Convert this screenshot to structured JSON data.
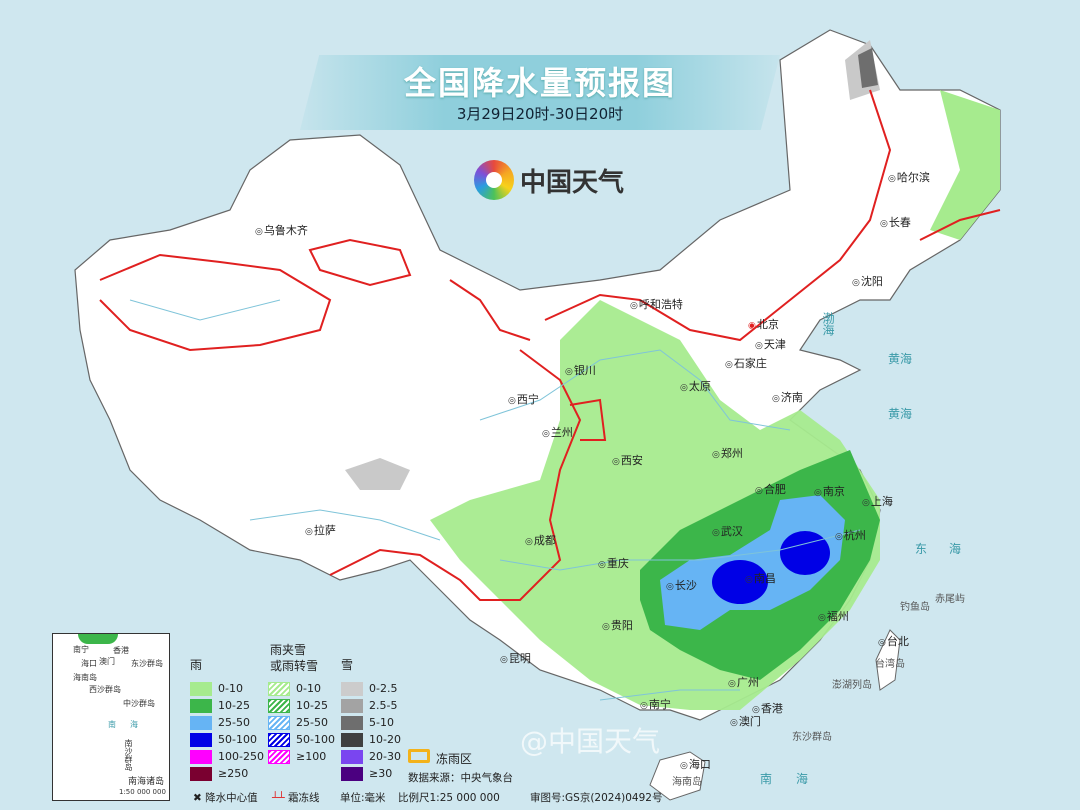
{
  "header": {
    "title": "全国降水量预报图",
    "subtitle": "3月29日20时-30日20时",
    "logo_text": "中国天气"
  },
  "colors": {
    "sea": "#cfe7ef",
    "land": "#ffffff",
    "rain_0_10": "#a6eb8e",
    "rain_10_25": "#3cb64a",
    "rain_25_50": "#66b4f4",
    "rain_50_100": "#0000e6",
    "rain_100_250": "#ff00ff",
    "rain_250": "#7a0030",
    "frost_line": "#e02020",
    "freezing_rain": "#f3b21a"
  },
  "cities": [
    "乌鲁木齐",
    "呼和浩特",
    "北京",
    "天津",
    "石家庄",
    "太原",
    "济南",
    "银川",
    "西宁",
    "兰州",
    "西安",
    "郑州",
    "合肥",
    "南京",
    "上海",
    "武汉",
    "杭州",
    "成都",
    "重庆",
    "长沙",
    "南昌",
    "福州",
    "贵阳",
    "台北",
    "昆明",
    "南宁",
    "广州",
    "香港",
    "澳门",
    "海口",
    "拉萨",
    "哈尔滨",
    "长春",
    "沈阳"
  ],
  "seas": [
    "渤海",
    "黄海",
    "黄海",
    "东海",
    "南海"
  ],
  "islands": [
    "台湾岛",
    "澎湖列岛",
    "东沙群岛",
    "钓鱼岛",
    "赤尾屿",
    "海南岛"
  ],
  "inset": {
    "labels": [
      "南宁",
      "澳门",
      "香港",
      "海口",
      "东沙群岛",
      "海南岛",
      "西沙群岛",
      "中沙群岛",
      "南海",
      "南沙群岛"
    ],
    "title": "南海诸岛",
    "scale": "1:50 000 000"
  },
  "legend": {
    "rain": {
      "title": "雨",
      "items": [
        "0-10",
        "10-25",
        "25-50",
        "50-100",
        "100-250",
        "≥250"
      ]
    },
    "mixed": {
      "title": "雨夹雪\n或雨转雪",
      "items": [
        "0-10",
        "10-25",
        "25-50",
        "50-100",
        "≥100"
      ]
    },
    "snow": {
      "title": "雪",
      "items": [
        "0-2.5",
        "2.5-5",
        "5-10",
        "10-20",
        "20-30",
        "≥30"
      ]
    },
    "freezing_rain": "冻雨区",
    "center_value": "降水中心值",
    "frost_line": "霜冻线",
    "unit": "单位:毫米",
    "source": "数据来源：中央气象台",
    "scale": "比例尺1:25 000 000",
    "map_no": "审图号:GS京(2024)0492号"
  },
  "watermark": "@中国天气"
}
